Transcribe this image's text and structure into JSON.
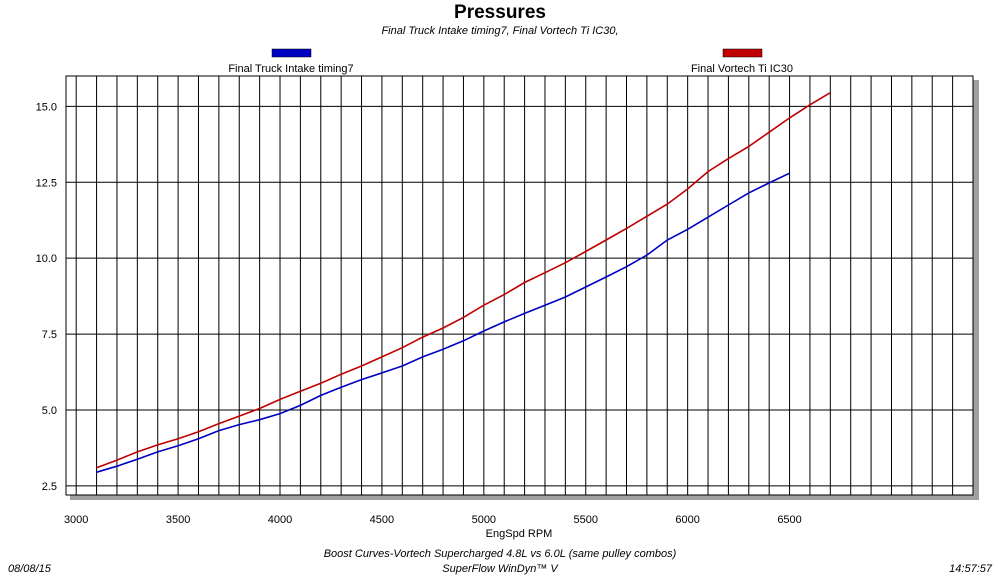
{
  "chart_data": {
    "type": "line",
    "title": "Pressures",
    "subtitle": "Final Truck Intake timing7, Final Vortech Ti  IC30,",
    "xlabel": "EngSpd RPM",
    "ylabel": "",
    "xlim": [
      2950,
      7400
    ],
    "ylim": [
      2.2,
      16.0
    ],
    "x_ticks": [
      "3000",
      "3500",
      "4000",
      "4500",
      "5000",
      "5500",
      "6000",
      "6500"
    ],
    "y_ticks": [
      "2.5",
      "5.0",
      "7.5",
      "10.0",
      "12.5",
      "15.0"
    ],
    "grid": true,
    "legend_position": "top",
    "series": [
      {
        "name": "Final Truck Intake timing7",
        "color": "#0000c0",
        "x": [
          3100,
          3200,
          3300,
          3400,
          3500,
          3600,
          3700,
          3800,
          3900,
          4000,
          4100,
          4200,
          4300,
          4400,
          4500,
          4600,
          4700,
          4800,
          4900,
          5000,
          5100,
          5200,
          5300,
          5400,
          5500,
          5600,
          5700,
          5800,
          5900,
          6000,
          6100,
          6200,
          6300,
          6400,
          6500
        ],
        "y": [
          2.95,
          3.15,
          3.38,
          3.62,
          3.82,
          4.05,
          4.32,
          4.52,
          4.68,
          4.88,
          5.15,
          5.48,
          5.75,
          6.0,
          6.22,
          6.45,
          6.75,
          7.0,
          7.28,
          7.6,
          7.9,
          8.18,
          8.45,
          8.72,
          9.05,
          9.38,
          9.72,
          10.1,
          10.6,
          10.95,
          11.35,
          11.75,
          12.15,
          12.48,
          12.8
        ]
      },
      {
        "name": "Final Vortech Ti  IC30",
        "color": "#c00000",
        "x": [
          3100,
          3200,
          3300,
          3400,
          3500,
          3600,
          3700,
          3800,
          3900,
          4000,
          4100,
          4200,
          4300,
          4400,
          4500,
          4600,
          4700,
          4800,
          4900,
          5000,
          5100,
          5200,
          5300,
          5400,
          5500,
          5600,
          5700,
          5800,
          5900,
          6000,
          6100,
          6200,
          6300,
          6400,
          6500,
          6600,
          6700
        ],
        "y": [
          3.1,
          3.35,
          3.62,
          3.85,
          4.05,
          4.28,
          4.55,
          4.8,
          5.05,
          5.35,
          5.62,
          5.88,
          6.18,
          6.45,
          6.75,
          7.05,
          7.4,
          7.7,
          8.05,
          8.45,
          8.8,
          9.2,
          9.52,
          9.85,
          10.22,
          10.6,
          10.98,
          11.38,
          11.78,
          12.28,
          12.85,
          13.28,
          13.68,
          14.15,
          14.62,
          15.05,
          15.45
        ]
      }
    ]
  },
  "footer": {
    "date": "08/08/15",
    "line1": "Boost Curves-Vortech Supercharged 4.8L vs 6.0L (same pulley combos)",
    "line2": "SuperFlow WinDyn™ V",
    "time": "14:57:57"
  }
}
